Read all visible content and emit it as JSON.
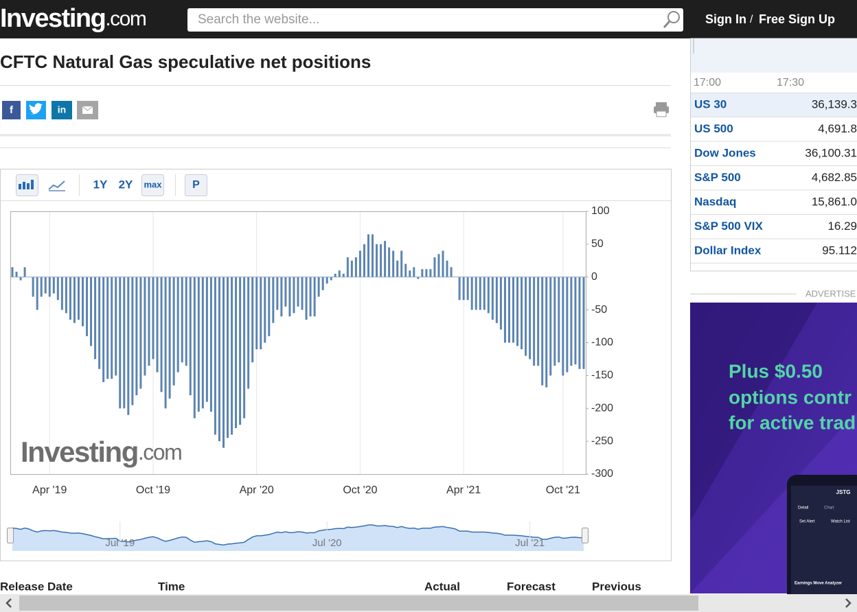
{
  "header": {
    "logo": "Investing",
    "logo_suffix": ".com",
    "search_placeholder": "Search the website...",
    "sign_in": "Sign In",
    "separator": "/",
    "sign_up": "Free Sign Up"
  },
  "page": {
    "title": "CFTC Natural Gas speculative net positions",
    "social": {
      "facebook": "f",
      "linkedin": "in"
    }
  },
  "toolbar": {
    "ranges": [
      "1Y",
      "2Y",
      "max"
    ],
    "p": "P"
  },
  "chart_data": {
    "type": "bar",
    "color": "#5b84b1",
    "values": [
      15,
      8,
      -5,
      15,
      0,
      -30,
      -50,
      -30,
      -25,
      -30,
      -25,
      -35,
      -50,
      -55,
      -65,
      -70,
      -65,
      -75,
      -90,
      -105,
      -125,
      -140,
      -160,
      -155,
      -155,
      -150,
      -200,
      -200,
      -210,
      -195,
      -180,
      -170,
      -150,
      -135,
      -125,
      -145,
      -175,
      -200,
      -185,
      -165,
      -145,
      -130,
      -135,
      -180,
      -215,
      -205,
      -200,
      -190,
      -205,
      -240,
      -250,
      -260,
      -245,
      -240,
      -230,
      -225,
      -215,
      -170,
      -130,
      -110,
      -110,
      -100,
      -90,
      -70,
      -50,
      -60,
      -45,
      -60,
      -55,
      -45,
      -50,
      -65,
      -60,
      -60,
      -30,
      -20,
      -10,
      -5,
      5,
      10,
      5,
      30,
      25,
      30,
      40,
      50,
      65,
      65,
      50,
      50,
      55,
      45,
      40,
      25,
      40,
      20,
      10,
      15,
      -3,
      12,
      12,
      12,
      30,
      35,
      40,
      25,
      15,
      0,
      -35,
      -35,
      -35,
      -50,
      -50,
      -50,
      -50,
      -55,
      -65,
      -70,
      -80,
      -100,
      -100,
      -100,
      -105,
      -110,
      -120,
      -125,
      -135,
      -135,
      -165,
      -168,
      -150,
      -135,
      -130,
      -150,
      -145,
      -135,
      -133,
      -140,
      -140
    ],
    "ylim": [
      -300,
      100
    ],
    "yticks": [
      100,
      50,
      0,
      -50,
      -100,
      -150,
      -200,
      -250,
      -300
    ],
    "xlim": [
      -0.5,
      138.5
    ],
    "xticks": [
      {
        "value": 9,
        "label": "Apr '19"
      },
      {
        "value": 34,
        "label": "Oct '19"
      },
      {
        "value": 59,
        "label": "Apr '20"
      },
      {
        "value": 84,
        "label": "Oct '20"
      },
      {
        "value": 109,
        "label": "Apr '21"
      },
      {
        "value": 133,
        "label": "Oct '21"
      }
    ],
    "grid": "x",
    "watermark": "Investing",
    "watermark_suffix": ".com",
    "navigator_xticks": [
      {
        "value": 26,
        "label": "Jul '19"
      },
      {
        "value": 76,
        "label": "Jul '20"
      },
      {
        "value": 125,
        "label": "Jul '21"
      }
    ]
  },
  "sidebar": {
    "times": [
      "17:00",
      "17:30"
    ],
    "quotes": [
      {
        "name": "US 30",
        "value": "36,139.3"
      },
      {
        "name": "US 500",
        "value": "4,691.8"
      },
      {
        "name": "Dow Jones",
        "value": "36,100.31"
      },
      {
        "name": "S&P 500",
        "value": "4,682.85"
      },
      {
        "name": "Nasdaq",
        "value": "15,861.0"
      },
      {
        "name": "S&P 500 VIX",
        "value": "16.29"
      },
      {
        "name": "Dollar Index",
        "value": "95.112"
      }
    ],
    "advertise": "ADVERTISE"
  },
  "ad": {
    "lines": [
      "Plus $0.50",
      "options contr",
      "for active trad"
    ],
    "ticker": "JSTG",
    "tabs": [
      "Detail",
      "Chart"
    ],
    "actions": [
      "Set Alert",
      "Watch List"
    ],
    "footer": "Earnings Move Analyzer"
  },
  "table": {
    "headers": [
      "Release Date",
      "Time",
      "Actual",
      "Forecast",
      "Previous"
    ]
  }
}
